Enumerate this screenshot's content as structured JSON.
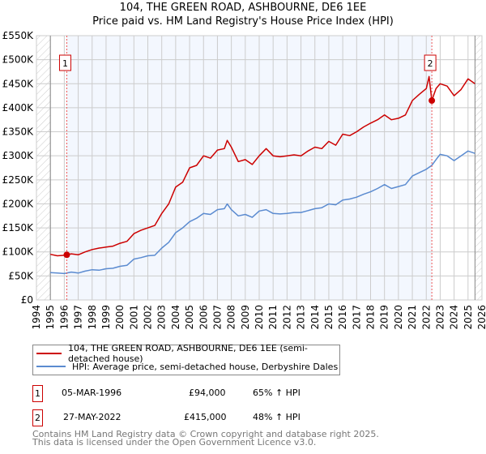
{
  "title_line1": "104, THE GREEN ROAD, ASHBOURNE, DE6 1EE",
  "title_line2": "Price paid vs. HM Land Registry's House Price Index (HPI)",
  "chart_data": {
    "type": "line",
    "title": "104, THE GREEN ROAD, ASHBOURNE, DE6 1EE — Price paid vs. HM Land Registry's House Price Index (HPI)",
    "xlim": [
      1994,
      2026
    ],
    "ylim": [
      0,
      550000
    ],
    "x_ticks": [
      "1994",
      "1995",
      "1996",
      "1997",
      "1998",
      "1999",
      "2000",
      "2001",
      "2002",
      "2003",
      "2004",
      "2005",
      "2006",
      "2007",
      "2008",
      "2009",
      "2010",
      "2011",
      "2012",
      "2013",
      "2014",
      "2015",
      "2016",
      "2017",
      "2018",
      "2019",
      "2020",
      "2021",
      "2022",
      "2023",
      "2024",
      "2025",
      "2026"
    ],
    "y_ticks": [
      {
        "v": 0,
        "label": "£0"
      },
      {
        "v": 50000,
        "label": "£50K"
      },
      {
        "v": 100000,
        "label": "£100K"
      },
      {
        "v": 150000,
        "label": "£150K"
      },
      {
        "v": 200000,
        "label": "£200K"
      },
      {
        "v": 250000,
        "label": "£250K"
      },
      {
        "v": 300000,
        "label": "£300K"
      },
      {
        "v": 350000,
        "label": "£350K"
      },
      {
        "v": 400000,
        "label": "£400K"
      },
      {
        "v": 450000,
        "label": "£450K"
      },
      {
        "v": 500000,
        "label": "£500K"
      },
      {
        "v": 550000,
        "label": "£550K"
      }
    ],
    "grid": true,
    "data_range": [
      1995,
      2025.5
    ],
    "ownership_period": [
      1996.18,
      2022.4
    ],
    "series": [
      {
        "name": "104, THE GREEN ROAD, ASHBOURNE, DE6 1EE (semi-detached house)",
        "color": "#cc0000",
        "x": [
          1995,
          1995.5,
          1996,
          1996.5,
          1997,
          1997.5,
          1998,
          1998.5,
          1999,
          1999.5,
          2000,
          2000.5,
          2001,
          2001.5,
          2002,
          2002.5,
          2003,
          2003.5,
          2004,
          2004.5,
          2005,
          2005.5,
          2006,
          2006.5,
          2007,
          2007.5,
          2007.7,
          2008,
          2008.5,
          2009,
          2009.5,
          2010,
          2010.5,
          2011,
          2011.5,
          2012,
          2012.5,
          2013,
          2013.5,
          2014,
          2014.5,
          2015,
          2015.5,
          2016,
          2016.5,
          2017,
          2017.5,
          2018,
          2018.5,
          2019,
          2019.5,
          2020,
          2020.5,
          2021,
          2021.5,
          2022,
          2022.2,
          2022.4,
          2022.7,
          2023,
          2023.5,
          2024,
          2024.5,
          2025,
          2025.5
        ],
        "y": [
          95000,
          92000,
          93000,
          96000,
          94000,
          100000,
          105000,
          108000,
          110000,
          112000,
          118000,
          122000,
          138000,
          145000,
          150000,
          155000,
          180000,
          200000,
          235000,
          245000,
          275000,
          280000,
          300000,
          295000,
          312000,
          315000,
          332000,
          318000,
          288000,
          292000,
          282000,
          300000,
          315000,
          300000,
          298000,
          300000,
          302000,
          300000,
          310000,
          318000,
          315000,
          330000,
          322000,
          345000,
          342000,
          350000,
          360000,
          368000,
          375000,
          385000,
          375000,
          378000,
          385000,
          415000,
          428000,
          440000,
          465000,
          415000,
          440000,
          450000,
          445000,
          425000,
          438000,
          460000,
          450000
        ]
      },
      {
        "name": "HPI: Average price, semi-detached house, Derbyshire Dales",
        "color": "#5b8bd0",
        "x": [
          1995,
          1995.5,
          1996,
          1996.5,
          1997,
          1997.5,
          1998,
          1998.5,
          1999,
          1999.5,
          2000,
          2000.5,
          2001,
          2001.5,
          2002,
          2002.5,
          2003,
          2003.5,
          2004,
          2004.5,
          2005,
          2005.5,
          2006,
          2006.5,
          2007,
          2007.5,
          2007.7,
          2008,
          2008.5,
          2009,
          2009.5,
          2010,
          2010.5,
          2011,
          2011.5,
          2012,
          2012.5,
          2013,
          2013.5,
          2014,
          2014.5,
          2015,
          2015.5,
          2016,
          2016.5,
          2017,
          2017.5,
          2018,
          2018.5,
          2019,
          2019.5,
          2020,
          2020.5,
          2021,
          2021.5,
          2022,
          2022.4,
          2022.7,
          2023,
          2023.5,
          2024,
          2024.5,
          2025,
          2025.5
        ],
        "y": [
          57000,
          56000,
          55000,
          58000,
          56000,
          60000,
          63000,
          62000,
          65000,
          66000,
          70000,
          72000,
          85000,
          88000,
          92000,
          93000,
          108000,
          120000,
          140000,
          150000,
          163000,
          170000,
          180000,
          178000,
          188000,
          190000,
          200000,
          188000,
          175000,
          178000,
          172000,
          185000,
          188000,
          180000,
          179000,
          180000,
          182000,
          182000,
          186000,
          190000,
          192000,
          200000,
          198000,
          208000,
          210000,
          214000,
          220000,
          225000,
          232000,
          240000,
          232000,
          236000,
          240000,
          258000,
          265000,
          272000,
          280000,
          292000,
          303000,
          300000,
          290000,
          300000,
          310000,
          305000
        ]
      }
    ],
    "annotations": [
      {
        "label": "1",
        "x": 1996.18,
        "y": 94000
      },
      {
        "label": "2",
        "x": 2022.4,
        "y": 415000
      }
    ]
  },
  "legend": [
    {
      "label": "104, THE GREEN ROAD, ASHBOURNE, DE6 1EE (semi-detached house)",
      "color": "#cc0000"
    },
    {
      "label": "HPI: Average price, semi-detached house, Derbyshire Dales",
      "color": "#5b8bd0"
    }
  ],
  "transactions": [
    {
      "num": "1",
      "date": "05-MAR-1996",
      "price": "£94,000",
      "hpi": "65% ↑ HPI"
    },
    {
      "num": "2",
      "date": "27-MAY-2022",
      "price": "£415,000",
      "hpi": "48% ↑ HPI"
    }
  ],
  "footer_line1": "Contains HM Land Registry data © Crown copyright and database right 2025.",
  "footer_line2": "This data is licensed under the Open Government Licence v3.0."
}
